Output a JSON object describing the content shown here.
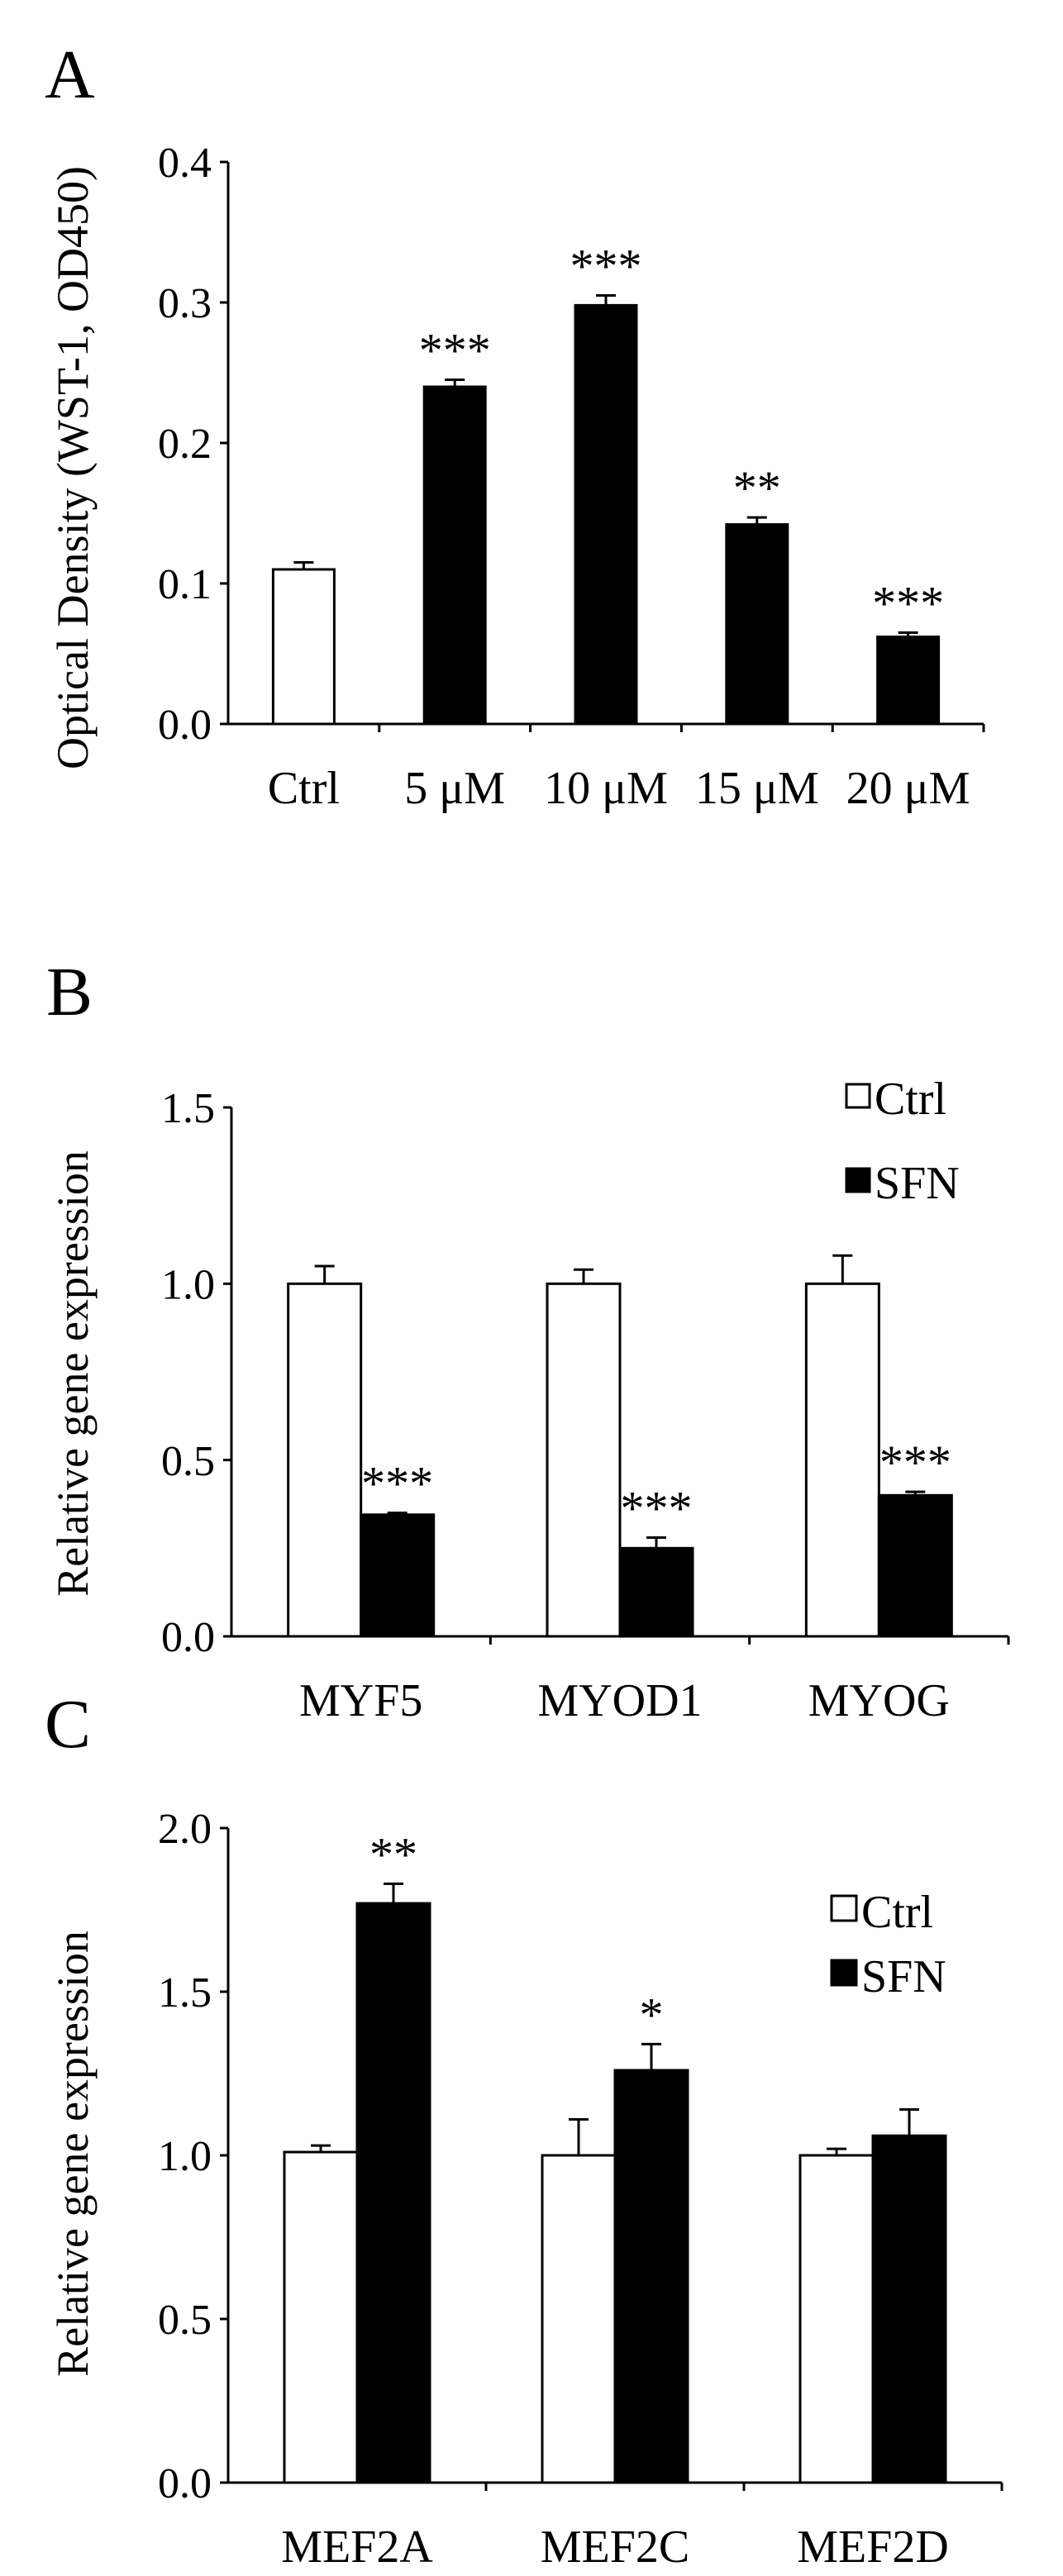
{
  "chart_data": [
    {
      "panel": "A",
      "type": "bar",
      "categories": [
        "Ctrl",
        "5 μM",
        "10 μM",
        "15 μM",
        "20 μM"
      ],
      "values": [
        0.11,
        0.24,
        0.298,
        0.142,
        0.062
      ],
      "errors": [
        0.005,
        0.005,
        0.007,
        0.005,
        0.003
      ],
      "bar_colors": [
        "#ffffff",
        "#000000",
        "#000000",
        "#000000",
        "#000000"
      ],
      "significance": [
        "",
        "***",
        "***",
        "**",
        "***"
      ],
      "ylabel": "Optical Density (WST-1, OD450)",
      "ylim": [
        0,
        0.4
      ],
      "yticks": [
        "0.0",
        "0.1",
        "0.2",
        "0.3",
        "0.4"
      ],
      "grid": false
    },
    {
      "panel": "B",
      "type": "bar",
      "categories": [
        "MYF5",
        "MYOD1",
        "MYOG"
      ],
      "series": [
        {
          "name": "Ctrl",
          "color": "#ffffff",
          "values": [
            1.0,
            1.0,
            1.0
          ],
          "errors": [
            0.05,
            0.04,
            0.08
          ]
        },
        {
          "name": "SFN",
          "color": "#000000",
          "values": [
            0.345,
            0.25,
            0.4
          ],
          "errors": [
            0.005,
            0.03,
            0.01
          ],
          "significance": [
            "***",
            "***",
            "***"
          ]
        }
      ],
      "ylabel": "Relative gene expression",
      "ylim": [
        0,
        1.5
      ],
      "yticks": [
        "0.0",
        "0.5",
        "1.0",
        "1.5"
      ],
      "legend": "top-right",
      "grid": false
    },
    {
      "panel": "C",
      "type": "bar",
      "categories": [
        "MEF2A",
        "MEF2C",
        "MEF2D"
      ],
      "series": [
        {
          "name": "Ctrl",
          "color": "#ffffff",
          "values": [
            1.01,
            1.0,
            1.0
          ],
          "errors": [
            0.02,
            0.11,
            0.02
          ]
        },
        {
          "name": "SFN",
          "color": "#000000",
          "values": [
            1.77,
            1.26,
            1.06
          ],
          "errors": [
            0.06,
            0.08,
            0.08
          ],
          "significance": [
            "**",
            "*",
            ""
          ]
        }
      ],
      "ylabel": "Relative gene expression",
      "ylim": [
        0,
        2.0
      ],
      "yticks": [
        "0.0",
        "0.5",
        "1.0",
        "1.5",
        "2.0"
      ],
      "legend": "top-right",
      "grid": false
    }
  ]
}
